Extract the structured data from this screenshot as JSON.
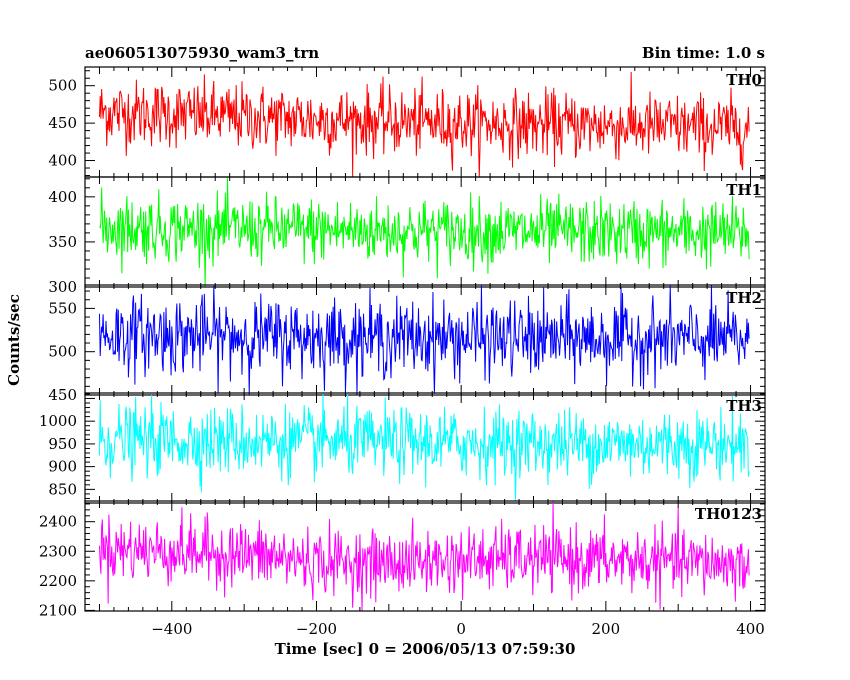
{
  "header": {
    "title_left": "ae060513075930_wam3_trn",
    "title_right": "Bin time: 1.0 s"
  },
  "chart_data": {
    "type": "line",
    "title": "ae060513075930_wam3_trn",
    "xlabel": "Time [sec] 0 = 2006/05/13 07:59:30",
    "ylabel": "Counts/sec",
    "bin_time": "Bin time: 1.0 s",
    "xlim": [
      -520,
      420
    ],
    "x_range_data": [
      -500,
      398
    ],
    "x_major_ticks": [
      -400,
      -200,
      0,
      200,
      400
    ],
    "x_tick_labels": [
      "−400",
      "−200",
      "0",
      "200",
      "400"
    ],
    "panels": [
      {
        "name": "TH0",
        "color": "#ff0000",
        "ylim": [
          378,
          525
        ],
        "y_ticks": [
          400,
          450,
          500
        ],
        "y_tick_labels": [
          "400",
          "450",
          "500"
        ],
        "trend_x": [
          -500,
          -400,
          -300,
          -200,
          -100,
          0,
          100,
          200,
          300,
          398
        ],
        "trend_y": [
          465,
          462,
          458,
          455,
          452,
          450,
          448,
          447,
          445,
          443
        ],
        "scatter_sd": 22
      },
      {
        "name": "TH1",
        "color": "#00ff00",
        "ylim": [
          300,
          422
        ],
        "y_ticks": [
          300,
          350,
          400
        ],
        "y_tick_labels": [
          "300",
          "350",
          "400"
        ],
        "trend_x": [
          -500,
          -400,
          -300,
          -200,
          -100,
          0,
          100,
          200,
          300,
          398
        ],
        "trend_y": [
          367,
          365,
          364,
          363,
          362,
          362,
          361,
          361,
          360,
          360
        ],
        "scatter_sd": 18
      },
      {
        "name": "TH2",
        "color": "#0000ff",
        "ylim": [
          450,
          577
        ],
        "y_ticks": [
          450,
          500,
          550
        ],
        "y_tick_labels": [
          "450",
          "500",
          "550"
        ],
        "trend_x": [
          -500,
          -400,
          -300,
          -200,
          -100,
          0,
          100,
          200,
          300,
          398
        ],
        "trend_y": [
          520,
          519,
          518,
          517,
          516,
          516,
          515,
          515,
          514,
          514
        ],
        "scatter_sd": 22
      },
      {
        "name": "TH3",
        "color": "#00ffff",
        "ylim": [
          820,
          1062
        ],
        "y_ticks": [
          850,
          900,
          950,
          1000
        ],
        "y_tick_labels": [
          "850",
          "900",
          "950",
          "1000"
        ],
        "trend_x": [
          -500,
          -400,
          -300,
          -200,
          -100,
          0,
          100,
          200,
          300,
          398
        ],
        "trend_y": [
          960,
          958,
          957,
          955,
          953,
          952,
          951,
          950,
          950,
          949
        ],
        "scatter_sd": 38
      },
      {
        "name": "TH0123",
        "color": "#ff00ff",
        "ylim": [
          2098,
          2470
        ],
        "y_ticks": [
          2100,
          2200,
          2300,
          2400
        ],
        "y_tick_labels": [
          "2100",
          "2200",
          "2300",
          "2400"
        ],
        "trend_x": [
          -500,
          -400,
          -300,
          -200,
          -100,
          0,
          100,
          200,
          300,
          398
        ],
        "trend_y": [
          2310,
          2300,
          2290,
          2265,
          2260,
          2270,
          2275,
          2270,
          2265,
          2255
        ],
        "scatter_sd": 55
      }
    ]
  }
}
